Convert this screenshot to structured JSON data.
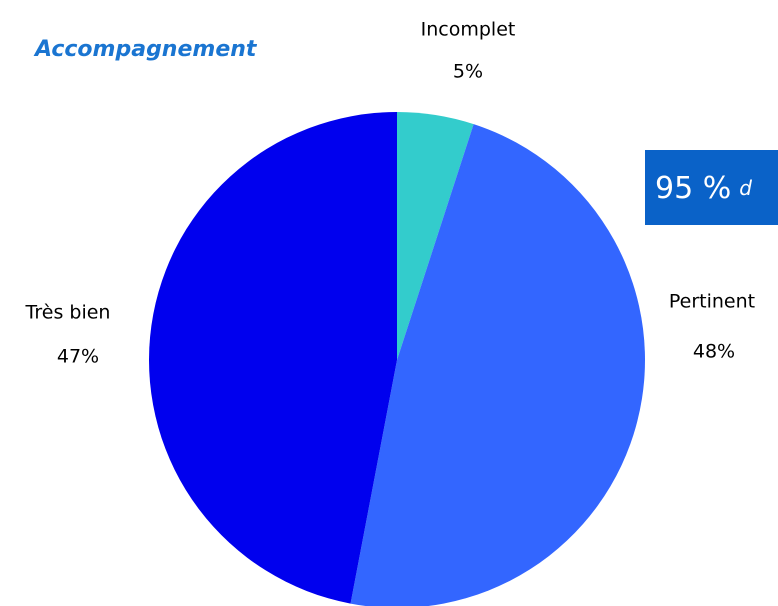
{
  "chart_data": {
    "type": "pie",
    "title": "Accompagnement",
    "categories": [
      "Incomplet",
      "Pertinent",
      "Très bien"
    ],
    "values": [
      5,
      48,
      47
    ],
    "value_labels": [
      "5%",
      "48%",
      "47%"
    ],
    "colors": [
      "#33cccc",
      "#3366ff",
      "#0000ee"
    ],
    "annotation": {
      "main": "95 %",
      "rest": "d"
    }
  }
}
